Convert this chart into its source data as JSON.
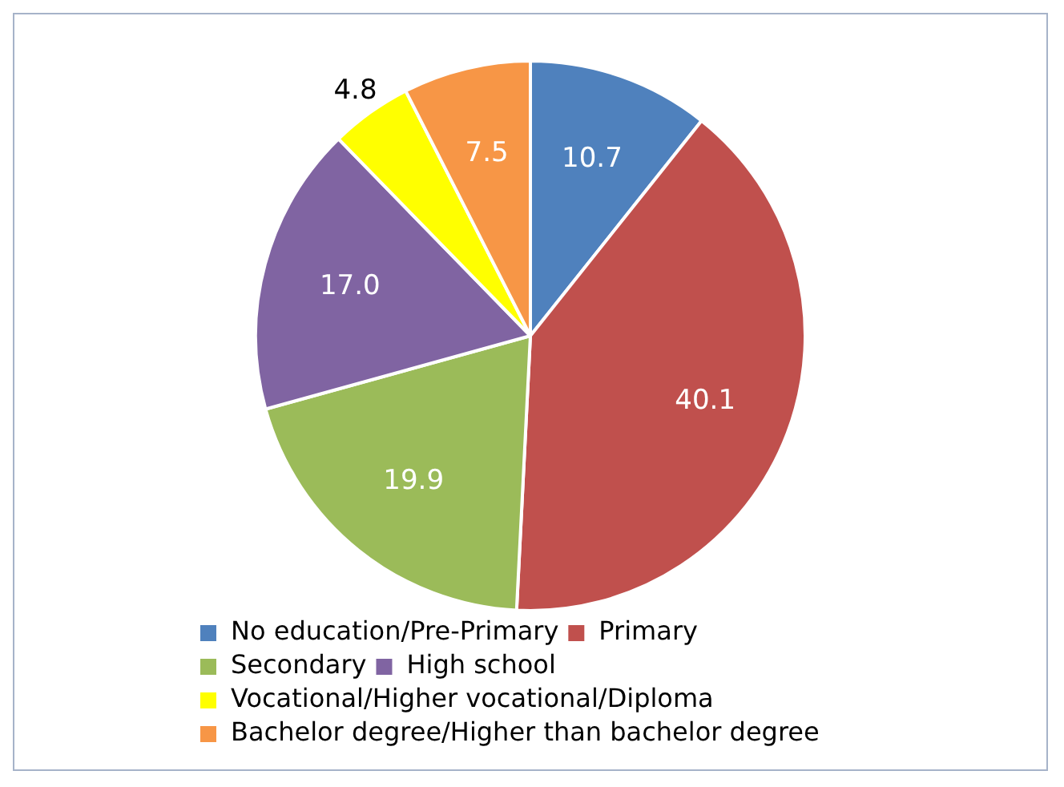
{
  "chart_data": {
    "type": "pie",
    "categories": [
      "No education/Pre-Primary",
      "Primary",
      "Secondary",
      "High school",
      "Vocational/Higher vocational/Diploma",
      "Bachelor degree/Higher than bachelor degree"
    ],
    "values": [
      10.7,
      40.1,
      19.9,
      17.0,
      4.8,
      7.5
    ],
    "value_labels": [
      "10.7",
      "40.1",
      "19.9",
      "17.0",
      "4.8",
      "7.5"
    ],
    "colors": [
      "#4f81bd",
      "#c0504d",
      "#9bbb59",
      "#8064a2",
      "#ffff00",
      "#f79646"
    ],
    "legend": "bottom"
  }
}
